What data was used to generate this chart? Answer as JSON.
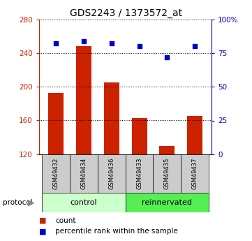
{
  "title": "GDS2243 / 1373572_at",
  "samples": [
    "GSM49432",
    "GSM49434",
    "GSM49436",
    "GSM49433",
    "GSM49435",
    "GSM49437"
  ],
  "count_values": [
    193,
    248,
    205,
    163,
    130,
    165
  ],
  "percentile_values": [
    82,
    84,
    82,
    80,
    72,
    80
  ],
  "ylim_left": [
    120,
    280
  ],
  "ylim_right": [
    0,
    100
  ],
  "yticks_left": [
    120,
    160,
    200,
    240,
    280
  ],
  "yticks_right": [
    0,
    25,
    50,
    75,
    100
  ],
  "ytick_labels_right": [
    "0",
    "25",
    "50",
    "75",
    "100%"
  ],
  "bar_color": "#cc2200",
  "dot_color": "#0000cc",
  "groups": [
    {
      "label": "control",
      "n_samples": 3,
      "color": "#ccffcc"
    },
    {
      "label": "reinnervated",
      "n_samples": 3,
      "color": "#55ee55"
    }
  ],
  "protocol_label": "protocol",
  "legend": [
    {
      "label": "count",
      "color": "#cc2200"
    },
    {
      "label": "percentile rank within the sample",
      "color": "#0000cc"
    }
  ],
  "background_color": "#ffffff",
  "tick_area_bg": "#cccccc",
  "left_axis_color": "#cc2200",
  "right_axis_color": "#0000cc"
}
